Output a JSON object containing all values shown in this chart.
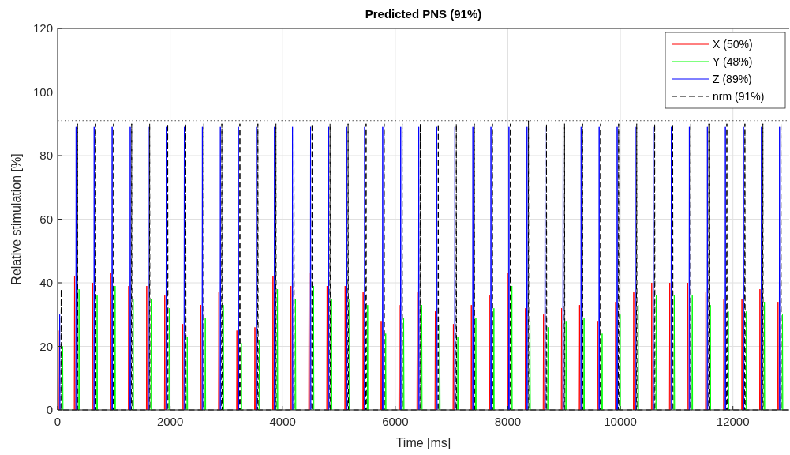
{
  "chart_data": {
    "type": "line",
    "title": "Predicted PNS (91%)",
    "xlabel": "Time [ms]",
    "ylabel": "Relative stimulation [%]",
    "series": [
      {
        "name": "X (50%)",
        "color": "#ff0000",
        "line_style": "solid",
        "x": [
          4,
          10,
          16,
          17,
          295,
          301,
          307,
          308,
          616,
          622,
          628,
          629,
          936,
          942,
          948,
          949,
          1257,
          1263,
          1269,
          1270,
          1577,
          1583,
          1589,
          1590,
          1898,
          1904,
          1910,
          1911,
          2218,
          2224,
          2230,
          2231,
          2539,
          2545,
          2551,
          2552,
          2859,
          2865,
          2871,
          2872,
          3180,
          3186,
          3192,
          3193,
          3500,
          3506,
          3512,
          3513,
          3821,
          3827,
          3833,
          3834,
          4141,
          4147,
          4153,
          4154,
          4462,
          4468,
          4474,
          4475,
          4782,
          4788,
          4794,
          4795,
          5103,
          5109,
          5115,
          5116,
          5423,
          5429,
          5435,
          5436,
          5744,
          5750,
          5756,
          5757,
          6064,
          6070,
          6076,
          6077,
          6385,
          6391,
          6397,
          6398,
          6705,
          6711,
          6717,
          6718,
          7026,
          7032,
          7038,
          7039,
          7346,
          7352,
          7358,
          7359,
          7667,
          7673,
          7679,
          7680,
          7987,
          7993,
          7999,
          8000,
          8308,
          8314,
          8320,
          8321,
          8628,
          8634,
          8640,
          8641,
          8949,
          8955,
          8961,
          8962,
          9269,
          9275,
          9281,
          9282,
          9590,
          9596,
          9602,
          9603,
          9910,
          9916,
          9922,
          9923,
          10231,
          10237,
          10243,
          10244,
          10551,
          10557,
          10563,
          10564,
          10872,
          10878,
          10884,
          10885,
          11192,
          11198,
          11204,
          11205,
          11513,
          11519,
          11525,
          11526,
          11833,
          11839,
          11845,
          11846,
          12154,
          12160,
          12166,
          12167,
          12474,
          12480,
          12486,
          12487,
          12795,
          12801,
          12807
        ],
        "values": [
          0,
          25,
          0,
          null,
          0,
          42,
          0,
          null,
          0,
          40,
          0,
          null,
          0,
          43,
          0,
          null,
          0,
          39,
          0,
          null,
          0,
          39,
          0,
          null,
          0,
          36,
          0,
          null,
          0,
          27,
          0,
          null,
          0,
          33,
          0,
          null,
          0,
          37,
          0,
          null,
          0,
          25,
          0,
          null,
          0,
          26,
          0,
          null,
          0,
          42,
          0,
          null,
          0,
          39,
          0,
          null,
          0,
          43,
          0,
          null,
          0,
          39,
          0,
          null,
          0,
          39,
          0,
          null,
          0,
          37,
          0,
          null,
          0,
          28,
          0,
          null,
          0,
          33,
          0,
          null,
          0,
          37,
          0,
          null,
          0,
          31,
          0,
          null,
          0,
          27,
          0,
          null,
          0,
          33,
          0,
          null,
          0,
          36,
          0,
          null,
          0,
          43,
          0,
          null,
          0,
          32,
          0,
          null,
          0,
          30,
          0,
          null,
          0,
          32,
          0,
          null,
          0,
          33,
          0,
          null,
          0,
          28,
          0,
          null,
          0,
          34,
          0,
          null,
          0,
          37,
          0,
          null,
          0,
          40,
          0,
          null,
          0,
          40,
          0,
          null,
          0,
          40,
          0,
          null,
          0,
          37,
          0,
          null,
          0,
          35,
          0,
          null,
          0,
          35,
          0,
          null,
          0,
          38,
          0,
          null,
          0,
          34,
          0
        ]
      },
      {
        "name": "Y (48%)",
        "color": "#00ff00",
        "line_style": "solid",
        "x": [
          84,
          90,
          96,
          97,
          375,
          381,
          387,
          388,
          696,
          702,
          708,
          709,
          1016,
          1022,
          1028,
          1029,
          1337,
          1343,
          1349,
          1350,
          1657,
          1663,
          1669,
          1670,
          1978,
          1984,
          1990,
          1991,
          2298,
          2304,
          2310,
          2311,
          2619,
          2625,
          2631,
          2632,
          2939,
          2945,
          2951,
          2952,
          3260,
          3266,
          3272,
          3273,
          3580,
          3586,
          3592,
          3593,
          3901,
          3907,
          3913,
          3914,
          4221,
          4227,
          4233,
          4234,
          4542,
          4548,
          4554,
          4555,
          4862,
          4868,
          4874,
          4875,
          5183,
          5189,
          5195,
          5196,
          5503,
          5509,
          5515,
          5516,
          5824,
          5830,
          5836,
          5837,
          6144,
          6150,
          6156,
          6157,
          6465,
          6471,
          6477,
          6478,
          6785,
          6791,
          6797,
          6798,
          7106,
          7112,
          7118,
          7119,
          7426,
          7432,
          7438,
          7439,
          7747,
          7753,
          7759,
          7760,
          8067,
          8073,
          8079,
          8080,
          8388,
          8394,
          8400,
          8401,
          8708,
          8714,
          8720,
          8721,
          9029,
          9035,
          9041,
          9042,
          9349,
          9355,
          9361,
          9362,
          9670,
          9676,
          9682,
          9683,
          9990,
          9996,
          10002,
          10003,
          10311,
          10317,
          10323,
          10324,
          10631,
          10637,
          10643,
          10644,
          10952,
          10958,
          10964,
          10965,
          11272,
          11278,
          11284,
          11285,
          11593,
          11599,
          11605,
          11606,
          11913,
          11919,
          11925,
          11926,
          12234,
          12240,
          12246,
          12247,
          12554,
          12560,
          12566,
          12567,
          12875,
          12881,
          12887
        ],
        "values": [
          0,
          20,
          0,
          null,
          0,
          38,
          0,
          null,
          0,
          36,
          0,
          null,
          0,
          39,
          0,
          null,
          0,
          35,
          0,
          null,
          0,
          35,
          0,
          null,
          0,
          32,
          0,
          null,
          0,
          23,
          0,
          null,
          0,
          29,
          0,
          null,
          0,
          33,
          0,
          null,
          0,
          21,
          0,
          null,
          0,
          22,
          0,
          null,
          0,
          38,
          0,
          null,
          0,
          35,
          0,
          null,
          0,
          39,
          0,
          null,
          0,
          35,
          0,
          null,
          0,
          35,
          0,
          null,
          0,
          33,
          0,
          null,
          0,
          24,
          0,
          null,
          0,
          29,
          0,
          null,
          0,
          33,
          0,
          null,
          0,
          27,
          0,
          null,
          0,
          23,
          0,
          null,
          0,
          29,
          0,
          null,
          0,
          32,
          0,
          null,
          0,
          39,
          0,
          null,
          0,
          28,
          0,
          null,
          0,
          26,
          0,
          null,
          0,
          28,
          0,
          null,
          0,
          29,
          0,
          null,
          0,
          24,
          0,
          null,
          0,
          30,
          0,
          null,
          0,
          33,
          0,
          null,
          0,
          36,
          0,
          null,
          0,
          36,
          0,
          null,
          0,
          36,
          0,
          null,
          0,
          33,
          0,
          null,
          0,
          31,
          0,
          null,
          0,
          31,
          0,
          null,
          0,
          34,
          0,
          null,
          0,
          30,
          0
        ]
      },
      {
        "name": "Z (89%)",
        "color": "#0000ff",
        "line_style": "solid",
        "x": [
          31,
          37,
          43,
          44,
          322,
          328,
          334,
          335,
          643,
          649,
          655,
          656,
          963,
          969,
          975,
          976,
          1284,
          1290,
          1296,
          1297,
          1604,
          1610,
          1616,
          1617,
          1925,
          1931,
          1937,
          1938,
          2245,
          2251,
          2257,
          2258,
          2566,
          2572,
          2578,
          2579,
          2886,
          2892,
          2898,
          2899,
          3207,
          3213,
          3219,
          3220,
          3527,
          3533,
          3539,
          3540,
          3848,
          3854,
          3860,
          3861,
          4168,
          4174,
          4180,
          4181,
          4489,
          4495,
          4501,
          4502,
          4809,
          4815,
          4821,
          4822,
          5130,
          5136,
          5142,
          5143,
          5450,
          5456,
          5462,
          5463,
          5771,
          5777,
          5783,
          5784,
          6091,
          6097,
          6103,
          6104,
          6412,
          6418,
          6424,
          6425,
          6732,
          6738,
          6744,
          6745,
          7053,
          7059,
          7065,
          7066,
          7373,
          7379,
          7385,
          7386,
          7694,
          7700,
          7706,
          7707,
          8014,
          8020,
          8026,
          8027,
          8335,
          8341,
          8347,
          8348,
          8655,
          8661,
          8667,
          8668,
          8976,
          8982,
          8988,
          8989,
          9296,
          9302,
          9308,
          9309,
          9617,
          9623,
          9629,
          9630,
          9937,
          9943,
          9949,
          9950,
          10258,
          10264,
          10270,
          10271,
          10578,
          10584,
          10590,
          10591,
          10899,
          10905,
          10911,
          10912,
          11219,
          11225,
          11231,
          11232,
          11540,
          11546,
          11552,
          11553,
          11860,
          11866,
          11872,
          11873,
          12181,
          12187,
          12193,
          12194,
          12501,
          12507,
          12513,
          12514,
          12822,
          12828,
          12834
        ],
        "values": [
          0,
          30,
          0,
          null,
          0,
          89,
          0,
          null,
          0,
          89,
          0,
          null,
          0,
          89,
          0,
          null,
          0,
          89,
          0,
          null,
          0,
          89,
          0,
          null,
          0,
          89,
          0,
          null,
          0,
          89,
          0,
          null,
          0,
          89,
          0,
          null,
          0,
          89,
          0,
          null,
          0,
          89,
          0,
          null,
          0,
          89,
          0,
          null,
          0,
          89,
          0,
          null,
          0,
          89,
          0,
          null,
          0,
          89,
          0,
          null,
          0,
          89,
          0,
          null,
          0,
          89,
          0,
          null,
          0,
          89,
          0,
          null,
          0,
          89,
          0,
          null,
          0,
          89,
          0,
          null,
          0,
          89,
          0,
          null,
          0,
          89,
          0,
          null,
          0,
          89,
          0,
          null,
          0,
          89,
          0,
          null,
          0,
          89,
          0,
          null,
          0,
          89,
          0,
          null,
          0,
          89,
          0,
          null,
          0,
          89,
          0,
          null,
          0,
          89,
          0,
          null,
          0,
          89,
          0,
          null,
          0,
          89,
          0,
          null,
          0,
          89,
          0,
          null,
          0,
          89,
          0,
          null,
          0,
          89,
          0,
          null,
          0,
          89,
          0,
          null,
          0,
          89,
          0,
          null,
          0,
          89,
          0,
          null,
          0,
          89,
          0,
          null,
          0,
          89,
          0,
          null,
          0,
          89,
          0,
          null,
          0,
          89,
          0
        ]
      },
      {
        "name": "nrm (91%)",
        "color": "#000000",
        "line_style": "dashed",
        "x": [
          57,
          63,
          69,
          348,
          354,
          360,
          669,
          675,
          681,
          989,
          995,
          1001,
          1310,
          1316,
          1322,
          1630,
          1636,
          1642,
          1951,
          1957,
          1963,
          2271,
          2277,
          2283,
          2592,
          2598,
          2604,
          2912,
          2918,
          2924,
          3233,
          3239,
          3245,
          3553,
          3559,
          3565,
          3874,
          3880,
          3886,
          4194,
          4200,
          4206,
          4515,
          4521,
          4527,
          4835,
          4841,
          4847,
          5156,
          5162,
          5168,
          5476,
          5482,
          5488,
          5797,
          5803,
          5809,
          6117,
          6123,
          6129,
          6438,
          6444,
          6450,
          6758,
          6764,
          6770,
          7079,
          7085,
          7091,
          7399,
          7405,
          7411,
          7720,
          7726,
          7732,
          8040,
          8046,
          8052,
          8361,
          8367,
          8373,
          8681,
          8687,
          8693,
          9002,
          9008,
          9014,
          9322,
          9328,
          9334,
          9643,
          9649,
          9655,
          9963,
          9969,
          9975,
          10284,
          10290,
          10296,
          10604,
          10610,
          10616,
          10925,
          10931,
          10937,
          11245,
          11251,
          11257,
          11566,
          11572,
          11578,
          11886,
          11892,
          11898,
          12207,
          12213,
          12219,
          12527,
          12533,
          12539,
          12848,
          12854,
          12860,
          13000
        ],
        "values": [
          0,
          38,
          0,
          0,
          90,
          0,
          0,
          90,
          0,
          0,
          90,
          0,
          0,
          90,
          0,
          0,
          90,
          0,
          0,
          90,
          0,
          0,
          90,
          0,
          0,
          90,
          0,
          0,
          90,
          0,
          0,
          90,
          0,
          0,
          90,
          0,
          0,
          90,
          0,
          0,
          90,
          0,
          0,
          90,
          0,
          0,
          90,
          0,
          0,
          90,
          0,
          0,
          90,
          0,
          0,
          90,
          0,
          0,
          90,
          0,
          0,
          90,
          0,
          0,
          90,
          0,
          0,
          90,
          0,
          0,
          90,
          0,
          0,
          90,
          0,
          0,
          90,
          0,
          0,
          91,
          0,
          0,
          90,
          0,
          0,
          90,
          0,
          0,
          90,
          0,
          0,
          90,
          0,
          0,
          90,
          0,
          0,
          90,
          0,
          0,
          90,
          0,
          0,
          90,
          0,
          0,
          90,
          0,
          0,
          90,
          0,
          0,
          90,
          0,
          0,
          90,
          0,
          0,
          90,
          0,
          0,
          90,
          0,
          0
        ]
      }
    ],
    "xlim": [
      0,
      13000
    ],
    "xticks": [
      0,
      2000,
      4000,
      6000,
      8000,
      10000,
      12000
    ],
    "ylim": [
      0,
      120
    ],
    "yticks": [
      0,
      20,
      40,
      60,
      80,
      100,
      120
    ],
    "ref_lines": [
      {
        "axis": "y",
        "value": 91,
        "color": "#555555",
        "line_style": "dotted"
      }
    ],
    "grid": true,
    "legend": "top right",
    "marker": "none"
  }
}
